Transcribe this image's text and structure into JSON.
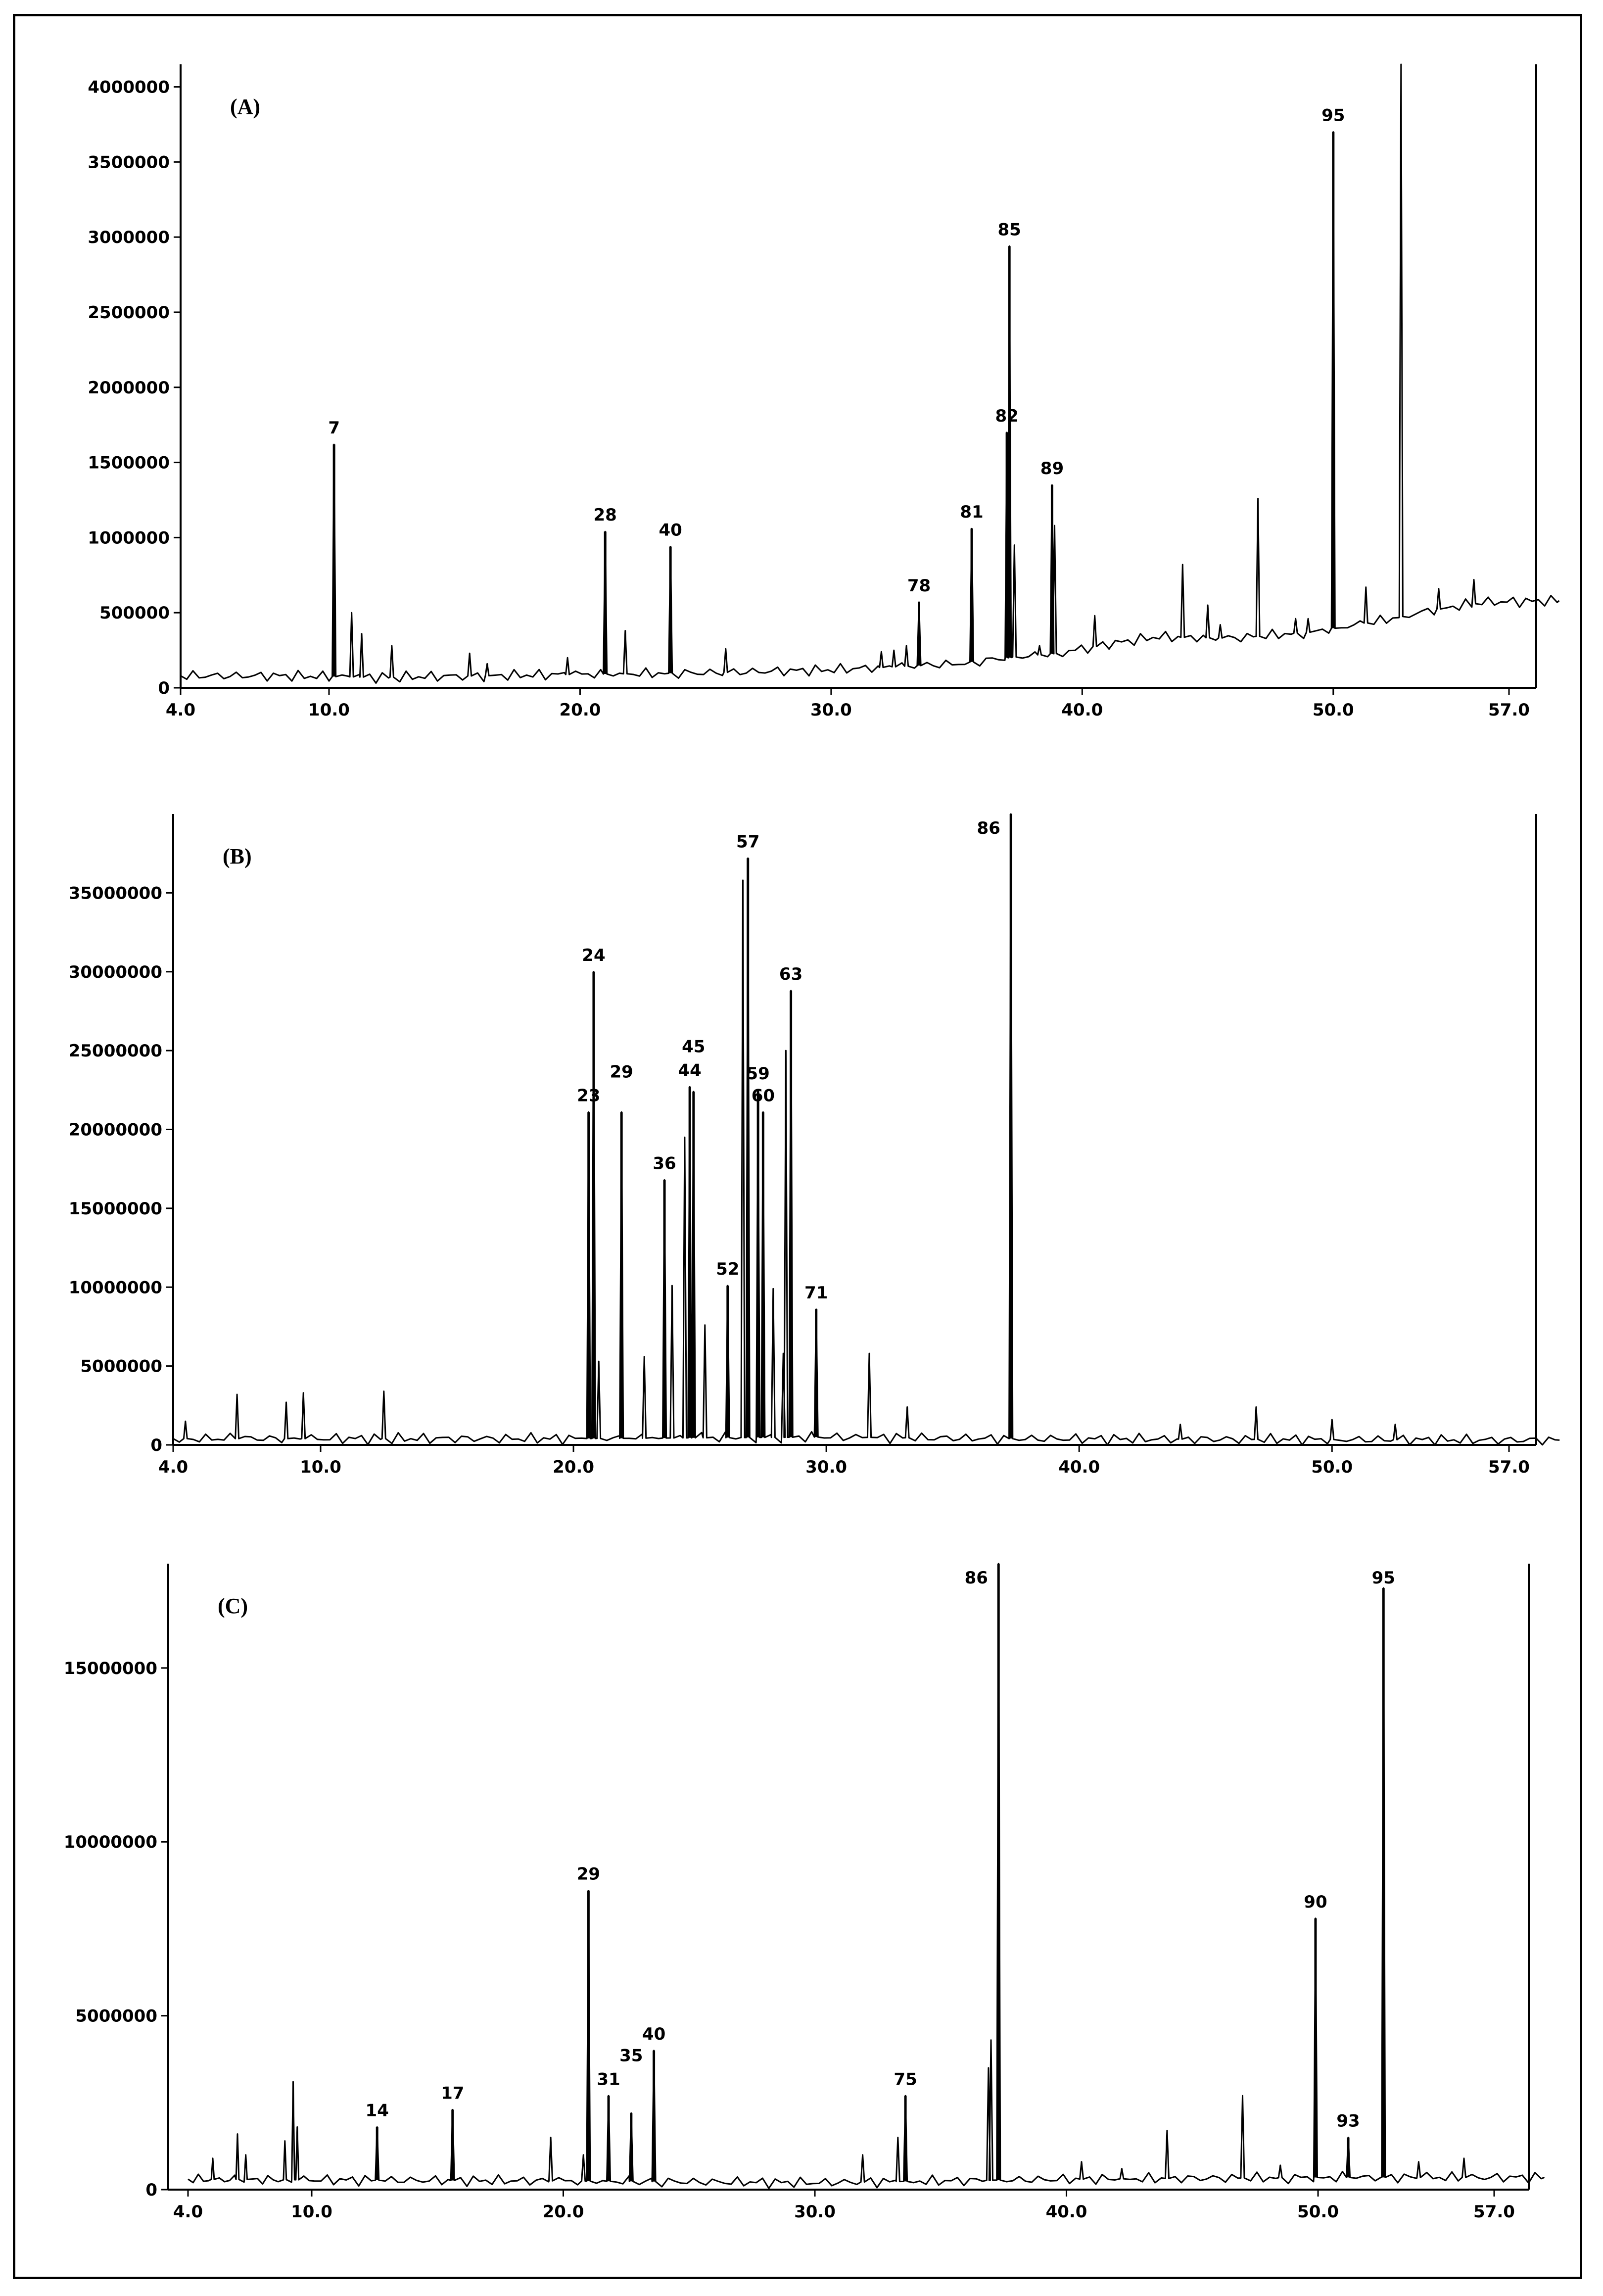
{
  "figure": {
    "panels": [
      "A",
      "B",
      "C"
    ]
  },
  "chart_data": [
    {
      "type": "line",
      "panel_label": "(A)",
      "xlabel": "",
      "ylabel": "",
      "xlim": [
        4.0,
        59.0
      ],
      "ylim": [
        0,
        4150000
      ],
      "x_ticks": [
        4.0,
        10.0,
        20.0,
        30.0,
        40.0,
        50.0,
        57.0
      ],
      "x_tick_labels": [
        "4.0",
        "10.0",
        "20.0",
        "30.0",
        "40.0",
        "50.0",
        "57.0"
      ],
      "y_ticks": [
        0,
        500000,
        1000000,
        1500000,
        2000000,
        2500000,
        3000000,
        3500000,
        4000000
      ],
      "y_tick_labels": [
        "0",
        "500000",
        "1000000",
        "1500000",
        "2000000",
        "2500000",
        "3000000",
        "3500000",
        "4000000"
      ],
      "baseline": [
        [
          4.0,
          80000
        ],
        [
          8.0,
          80000
        ],
        [
          12.0,
          70000
        ],
        [
          20.0,
          90000
        ],
        [
          25.0,
          100000
        ],
        [
          30.0,
          120000
        ],
        [
          35.0,
          160000
        ],
        [
          37.0,
          200000
        ],
        [
          39.0,
          230000
        ],
        [
          41.0,
          290000
        ],
        [
          43.0,
          340000
        ],
        [
          46.0,
          330000
        ],
        [
          49.0,
          370000
        ],
        [
          52.0,
          450000
        ],
        [
          54.0,
          520000
        ],
        [
          56.0,
          570000
        ],
        [
          59.0,
          580000
        ]
      ],
      "peaks": [
        {
          "label": "7",
          "x": 10.2,
          "y": 1620000
        },
        {
          "label": "28",
          "x": 21.0,
          "y": 1040000
        },
        {
          "label": "40",
          "x": 23.6,
          "y": 940000
        },
        {
          "label": "78",
          "x": 33.5,
          "y": 570000
        },
        {
          "label": "81",
          "x": 35.6,
          "y": 1060000
        },
        {
          "label": "82",
          "x": 37.0,
          "y": 1700000
        },
        {
          "label": "85",
          "x": 37.1,
          "y": 2940000
        },
        {
          "label": "89",
          "x": 38.8,
          "y": 1350000
        },
        {
          "label": "95",
          "x": 50.0,
          "y": 3700000
        }
      ],
      "minor_peaks": [
        {
          "x": 10.9,
          "y": 500000
        },
        {
          "x": 11.3,
          "y": 360000
        },
        {
          "x": 12.5,
          "y": 280000
        },
        {
          "x": 15.6,
          "y": 230000
        },
        {
          "x": 16.3,
          "y": 160000
        },
        {
          "x": 19.5,
          "y": 200000
        },
        {
          "x": 21.8,
          "y": 380000
        },
        {
          "x": 25.8,
          "y": 260000
        },
        {
          "x": 32.0,
          "y": 240000
        },
        {
          "x": 32.5,
          "y": 250000
        },
        {
          "x": 33.0,
          "y": 280000
        },
        {
          "x": 37.3,
          "y": 950000
        },
        {
          "x": 38.3,
          "y": 280000
        },
        {
          "x": 38.9,
          "y": 1080000
        },
        {
          "x": 40.5,
          "y": 480000
        },
        {
          "x": 44.0,
          "y": 820000
        },
        {
          "x": 45.0,
          "y": 550000
        },
        {
          "x": 45.5,
          "y": 420000
        },
        {
          "x": 47.0,
          "y": 1260000
        },
        {
          "x": 48.5,
          "y": 460000
        },
        {
          "x": 49.0,
          "y": 460000
        },
        {
          "x": 51.3,
          "y": 670000
        },
        {
          "x": 52.7,
          "y": 4150000
        },
        {
          "x": 54.2,
          "y": 660000
        },
        {
          "x": 55.6,
          "y": 720000
        }
      ]
    },
    {
      "type": "line",
      "panel_label": "(B)",
      "xlabel": "",
      "ylabel": "",
      "xlim": [
        4.0,
        59.0
      ],
      "ylim": [
        0,
        40000000
      ],
      "x_ticks": [
        4.0,
        10.0,
        20.0,
        30.0,
        40.0,
        50.0,
        57.0
      ],
      "x_tick_labels": [
        "4.0",
        "10.0",
        "20.0",
        "30.0",
        "40.0",
        "50.0",
        "57.0"
      ],
      "y_ticks": [
        0,
        5000000,
        10000000,
        15000000,
        20000000,
        25000000,
        30000000,
        35000000
      ],
      "y_tick_labels": [
        "0",
        "5000000",
        "10000000",
        "15000000",
        "20000000",
        "25000000",
        "30000000",
        "35000000"
      ],
      "baseline": [
        [
          4.0,
          400000
        ],
        [
          20.0,
          400000
        ],
        [
          30.0,
          500000
        ],
        [
          37.0,
          400000
        ],
        [
          59.0,
          300000
        ]
      ],
      "peaks": [
        {
          "label": "23",
          "x": 20.6,
          "y": 21100000
        },
        {
          "label": "24",
          "x": 20.8,
          "y": 30000000
        },
        {
          "label": "29",
          "x": 21.9,
          "y": 21100000
        },
        {
          "label": "36",
          "x": 23.6,
          "y": 16800000
        },
        {
          "label": "44",
          "x": 24.6,
          "y": 22700000
        },
        {
          "label": "45",
          "x": 24.75,
          "y": 22400000
        },
        {
          "label": "52",
          "x": 26.1,
          "y": 10100000
        },
        {
          "label": "57",
          "x": 26.9,
          "y": 37200000
        },
        {
          "label": "59",
          "x": 27.3,
          "y": 22500000
        },
        {
          "label": "60",
          "x": 27.5,
          "y": 21100000
        },
        {
          "label": "63",
          "x": 28.6,
          "y": 28800000
        },
        {
          "label": "71",
          "x": 29.6,
          "y": 8600000
        },
        {
          "label": "86",
          "x": 37.3,
          "y": 40000000
        }
      ],
      "minor_peaks": [
        {
          "x": 4.5,
          "y": 1500000
        },
        {
          "x": 6.6,
          "y": 3200000
        },
        {
          "x": 8.6,
          "y": 2700000
        },
        {
          "x": 9.3,
          "y": 3300000
        },
        {
          "x": 12.5,
          "y": 3400000
        },
        {
          "x": 21.0,
          "y": 5300000
        },
        {
          "x": 22.8,
          "y": 5600000
        },
        {
          "x": 23.9,
          "y": 10100000
        },
        {
          "x": 24.4,
          "y": 19500000
        },
        {
          "x": 25.2,
          "y": 7600000
        },
        {
          "x": 26.7,
          "y": 35800000
        },
        {
          "x": 27.9,
          "y": 9900000
        },
        {
          "x": 28.3,
          "y": 5800000
        },
        {
          "x": 28.4,
          "y": 25000000
        },
        {
          "x": 31.7,
          "y": 5800000
        },
        {
          "x": 33.2,
          "y": 2400000
        },
        {
          "x": 44.0,
          "y": 1300000
        },
        {
          "x": 47.0,
          "y": 2400000
        },
        {
          "x": 50.0,
          "y": 1600000
        },
        {
          "x": 52.5,
          "y": 1300000
        }
      ]
    },
    {
      "type": "line",
      "panel_label": "(C)",
      "xlabel": "",
      "ylabel": "",
      "xlim": [
        4.0,
        59.0
      ],
      "ylim": [
        0,
        18000000
      ],
      "x_ticks": [
        4.0,
        10.0,
        20.0,
        30.0,
        40.0,
        50.0,
        57.0
      ],
      "x_tick_labels": [
        "4.0",
        "10.0",
        "20.0",
        "30.0",
        "40.0",
        "50.0",
        "57.0"
      ],
      "y_ticks": [
        0,
        5000000,
        10000000,
        15000000
      ],
      "y_tick_labels": [
        "0",
        "5000000",
        "10000000",
        "15000000"
      ],
      "baseline": [
        [
          4.0,
          300000
        ],
        [
          20.0,
          250000
        ],
        [
          30.0,
          200000
        ],
        [
          40.0,
          300000
        ],
        [
          50.0,
          350000
        ],
        [
          59.0,
          350000
        ]
      ],
      "peaks": [
        {
          "label": "14",
          "x": 12.6,
          "y": 1800000
        },
        {
          "label": "17",
          "x": 15.6,
          "y": 2300000
        },
        {
          "label": "29",
          "x": 21.0,
          "y": 8600000
        },
        {
          "label": "31",
          "x": 21.8,
          "y": 2700000
        },
        {
          "label": "35",
          "x": 22.7,
          "y": 2200000
        },
        {
          "label": "40",
          "x": 23.6,
          "y": 4000000
        },
        {
          "label": "75",
          "x": 33.6,
          "y": 2700000
        },
        {
          "label": "86",
          "x": 37.3,
          "y": 18000000
        },
        {
          "label": "90",
          "x": 49.9,
          "y": 7800000
        },
        {
          "label": "93",
          "x": 51.2,
          "y": 1500000
        },
        {
          "label": "95",
          "x": 52.6,
          "y": 17300000
        }
      ],
      "minor_peaks": [
        {
          "x": 5.2,
          "y": 900000
        },
        {
          "x": 6.4,
          "y": 1600000
        },
        {
          "x": 6.8,
          "y": 1000000
        },
        {
          "x": 8.7,
          "y": 1400000
        },
        {
          "x": 9.1,
          "y": 3100000
        },
        {
          "x": 9.3,
          "y": 1800000
        },
        {
          "x": 19.5,
          "y": 1500000
        },
        {
          "x": 20.8,
          "y": 1000000
        },
        {
          "x": 31.9,
          "y": 1000000
        },
        {
          "x": 33.3,
          "y": 1500000
        },
        {
          "x": 36.9,
          "y": 3500000
        },
        {
          "x": 37.0,
          "y": 4300000
        },
        {
          "x": 40.6,
          "y": 800000
        },
        {
          "x": 42.2,
          "y": 600000
        },
        {
          "x": 44.0,
          "y": 1700000
        },
        {
          "x": 47.0,
          "y": 2700000
        },
        {
          "x": 48.5,
          "y": 700000
        },
        {
          "x": 54.0,
          "y": 800000
        },
        {
          "x": 55.8,
          "y": 900000
        }
      ]
    }
  ]
}
